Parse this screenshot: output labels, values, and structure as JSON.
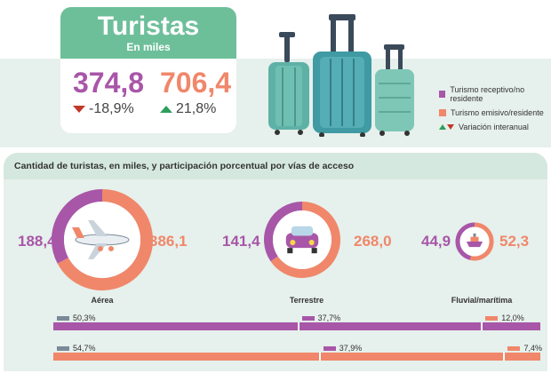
{
  "colors": {
    "purple": "#a856a8",
    "orange": "#f0876a",
    "green": "#6dbf9a",
    "teal": "#4fa3a5"
  },
  "header": {
    "title": "Turistas",
    "subtitle": "En miles",
    "receptivo": {
      "value": "374,8",
      "change": "-18,9%",
      "direction": "down"
    },
    "emisivo": {
      "value": "706,4",
      "change": "21,8%",
      "direction": "up"
    }
  },
  "legend": {
    "items": [
      {
        "label": "Turismo receptivo/no residente",
        "color": "#a856a8"
      },
      {
        "label": "Turismo emisivo/residente",
        "color": "#f0876a"
      },
      {
        "label": "Variación interanual",
        "icon": "up-down-triangles-icon"
      }
    ]
  },
  "section": {
    "title": "Cantidad de turistas, en miles, y participación porcentual por vías de acceso"
  },
  "modes": [
    {
      "label": "Aérea",
      "icon": "airplane-icon",
      "receptivo": "188,4",
      "emisivo": "386,1"
    },
    {
      "label": "Terrestre",
      "icon": "car-icon",
      "receptivo": "141,4",
      "emisivo": "268,0"
    },
    {
      "label": "Fluvial/marítima",
      "icon": "ship-icon",
      "receptivo": "44,9",
      "emisivo": "52,3"
    }
  ],
  "chart_data": [
    {
      "type": "pie",
      "categories": [
        "Aérea",
        "Terrestre",
        "Fluvial/marítima"
      ],
      "series": [
        {
          "name": "Turismo receptivo/no residente",
          "values": [
            188.4,
            141.4,
            44.9
          ]
        },
        {
          "name": "Turismo emisivo/residente",
          "values": [
            386.1,
            268.0,
            52.3
          ]
        }
      ]
    },
    {
      "type": "bar",
      "categories": [
        "Aérea",
        "Terrestre",
        "Fluvial/marítima"
      ],
      "series": [
        {
          "name": "Turismo receptivo/no residente",
          "values": [
            50.3,
            37.7,
            12.0
          ],
          "labels": [
            "50,3%",
            "37,7%",
            "12,0%"
          ]
        },
        {
          "name": "Turismo emisivo/residente",
          "values": [
            54.7,
            37.9,
            7.4
          ],
          "labels": [
            "54,7%",
            "37,9%",
            "7,4%"
          ]
        }
      ]
    }
  ]
}
